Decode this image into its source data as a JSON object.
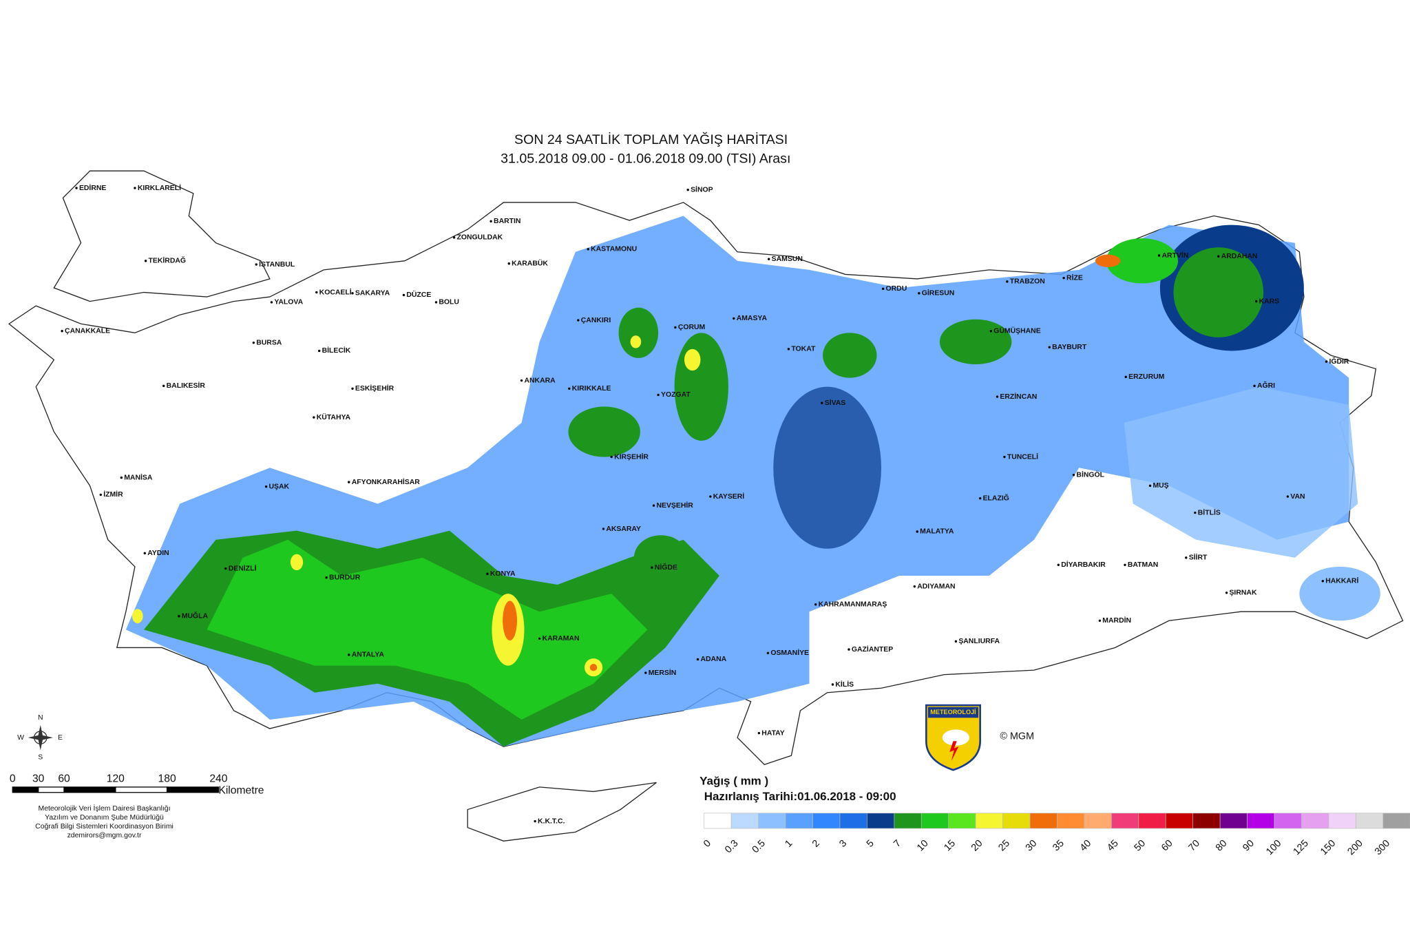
{
  "header": {
    "title": "SON 24 SAATLİK TOPLAM YAĞIŞ HARİTASI",
    "subtitle": "31.05.2018 09.00 - 01.06.2018 09.00 (TSI) Arası"
  },
  "cities": [
    "EDİRNE",
    "KIRKLARELİ",
    "TEKİRDAĞ",
    "İSTANBUL",
    "KOCAELİ",
    "SAKARYA",
    "YALOVA",
    "DÜZCE",
    "BOLU",
    "ZONGULDAK",
    "BARTIN",
    "KARABÜK",
    "KASTAMONU",
    "SİNOP",
    "SAMSUN",
    "ÇANAKKALE",
    "BURSA",
    "BİLECİK",
    "ÇANKIRI",
    "ÇORUM",
    "AMASYA",
    "TOKAT",
    "ORDU",
    "GİRESUN",
    "TRABZON",
    "RİZE",
    "ARTVİN",
    "ARDAHAN",
    "KARS",
    "IĞDIR",
    "BALIKESİR",
    "ESKİŞEHİR",
    "ANKARA",
    "KIRIKKALE",
    "YOZGAT",
    "SİVAS",
    "ERZİNCAN",
    "BAYBURT",
    "GÜMÜŞHANE",
    "ERZURUM",
    "AĞRI",
    "KÜTAHYA",
    "KIRŞEHİR",
    "TUNCELİ",
    "BİNGÖL",
    "MANİSA",
    "UŞAK",
    "AFYONKARAHİSAR",
    "İZMİR",
    "KAYSERİ",
    "NEVŞEHİR",
    "ELAZIĞ",
    "MUŞ",
    "VAN",
    "BİTLİS",
    "MALATYA",
    "AKSARAY",
    "AYDIN",
    "DENİZLİ",
    "BURDUR",
    "KONYA",
    "NİĞDE",
    "DİYARBAKIR",
    "BATMAN",
    "SİİRT",
    "HAKKARİ",
    "MUĞLA",
    "KAHRAMANMARAŞ",
    "ADIYAMAN",
    "ŞIRNAK",
    "MARDİN",
    "KARAMAN",
    "OSMANİYE",
    "GAZİANTEP",
    "ŞANLIURFA",
    "ANTALYA",
    "MERSİN",
    "ADANA",
    "KİLİS",
    "HATAY",
    "K.K.T.C."
  ],
  "legend": {
    "title": "Yağış ( mm )",
    "prepared": "Hazırlanış Tarihi:01.06.2018 - 09:00",
    "levels": [
      0,
      0.3,
      0.5,
      1,
      2,
      3,
      5,
      7,
      10,
      15,
      20,
      25,
      30,
      35,
      40,
      45,
      50,
      60,
      70,
      80,
      90,
      100,
      125,
      150,
      200,
      300
    ],
    "colors": [
      "#ffffff",
      "#bcd9ff",
      "#8cc0ff",
      "#5aa0ff",
      "#3287ff",
      "#1e6ee6",
      "#0a3c8c",
      "#1e961e",
      "#1ec81e",
      "#5ae61e",
      "#f5f532",
      "#e6dc0a",
      "#f06e0a",
      "#ff8c32",
      "#ffaa6e",
      "#f03c78",
      "#f01e46",
      "#c80000",
      "#8c0000",
      "#700090",
      "#b400e6",
      "#d264f0",
      "#e6a0f0",
      "#f0d2f8",
      "#dcdcdc",
      "#a0a0a0"
    ]
  },
  "scale_bar": {
    "ticks": [
      0,
      30,
      60,
      120,
      180,
      240
    ],
    "unit": "Kilometre"
  },
  "compass": {
    "n": "N",
    "e": "E",
    "s": "S",
    "w": "W"
  },
  "credits": [
    "Meteorolojik Veri İşlem Dairesi Başkanlığı",
    "Yazılım ve Donanım Şube Müdürlüğü",
    "Coğrafi Bilgi Sistemleri Koordinasyon Birimi",
    "zdemirors@mgm.gov.tr"
  ],
  "logo": {
    "text": "METEOROLOJİ",
    "copyright": "© MGM"
  }
}
